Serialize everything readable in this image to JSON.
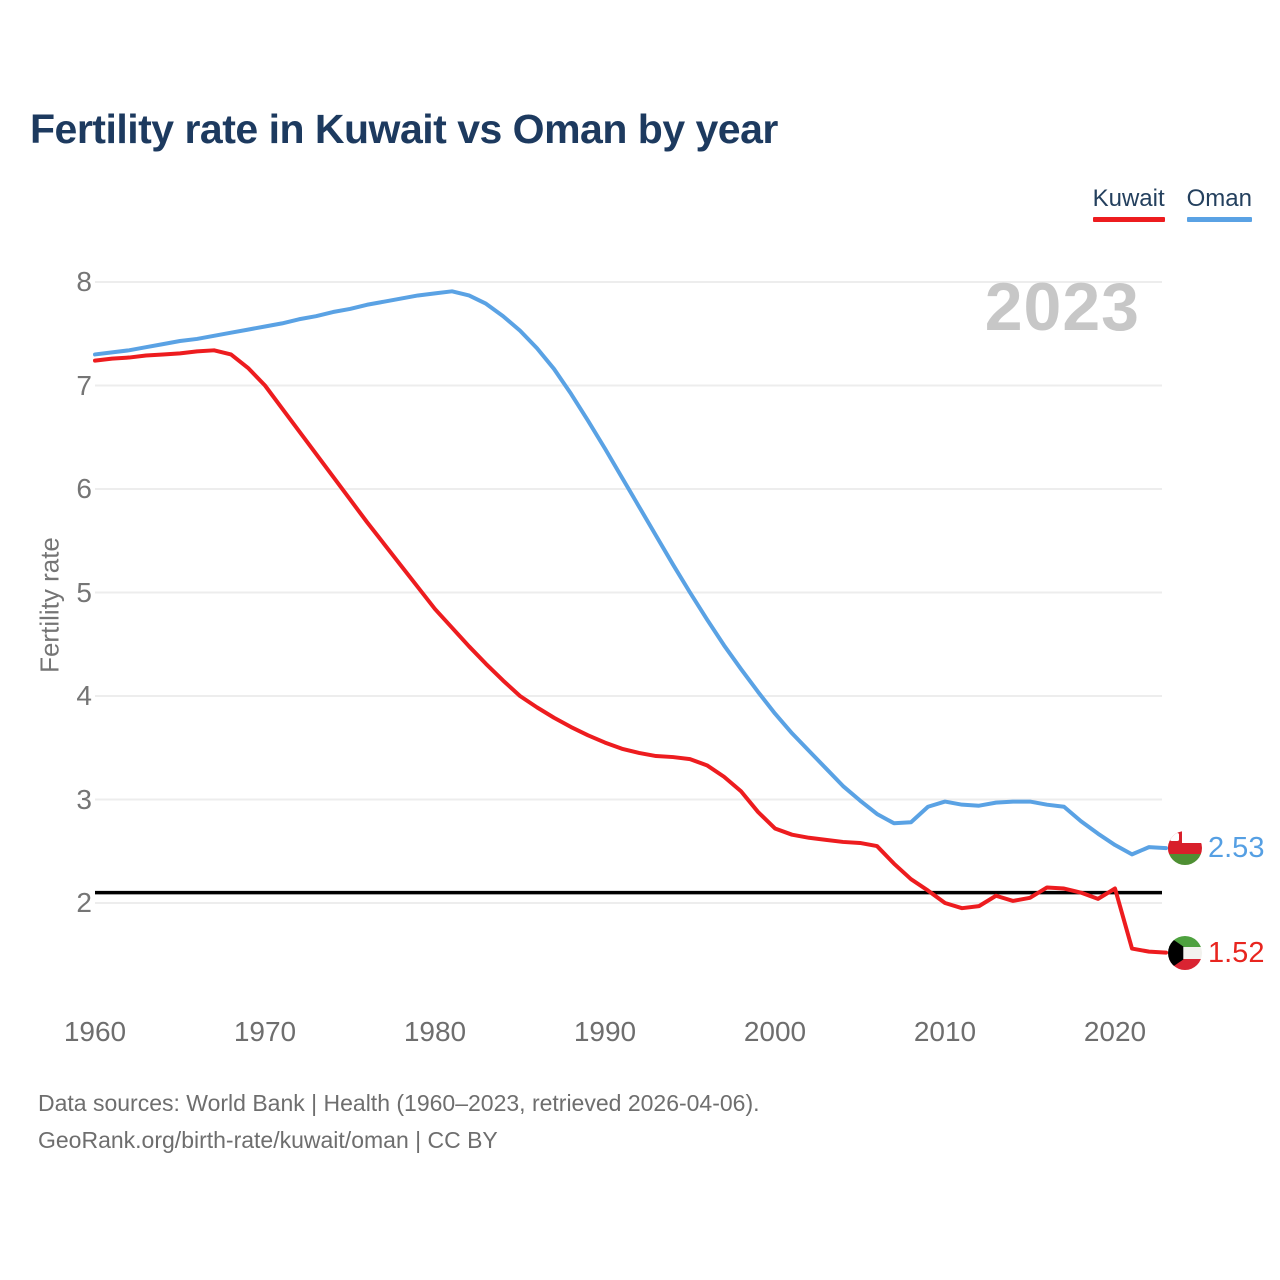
{
  "title": "Fertility rate in Kuwait vs Oman by year",
  "watermark": "2023",
  "legend": [
    {
      "label": "Kuwait",
      "color": "#ed1c1f"
    },
    {
      "label": "Oman",
      "color": "#5aa2e4"
    }
  ],
  "axes": {
    "y_label": "Fertility rate",
    "y_ticks": [
      8,
      7,
      6,
      5,
      4,
      3,
      2
    ],
    "x_ticks": [
      1960,
      1970,
      1980,
      1990,
      2000,
      2010,
      2020
    ]
  },
  "end_labels": {
    "oman": "2.53",
    "kuwait": "1.52"
  },
  "footer": {
    "line1": "Data sources: World Bank | Health (1960–2023, retrieved 2026-04-06).",
    "line2": "GeoRank.org/birth-rate/kuwait/oman | CC BY"
  },
  "colors": {
    "kuwait": "#ed1c1f",
    "oman": "#5aa2e4",
    "gridline": "#ededed",
    "replacement_line": "#000000",
    "title": "#1d3a5f",
    "axis_text": "#757575",
    "watermark": "#c7c7c7"
  },
  "chart_data": {
    "type": "line",
    "title": "Fertility rate in Kuwait vs Oman by year",
    "xlabel": "",
    "ylabel": "Fertility rate",
    "ylim": [
      1.3,
      8.3
    ],
    "xlim": [
      1960,
      2023
    ],
    "grid": "horizontal",
    "legend_position": "top-right",
    "annotations": {
      "replacement_level": 2.1,
      "current_year_watermark": "2023"
    },
    "x": [
      1960,
      1961,
      1962,
      1963,
      1964,
      1965,
      1966,
      1967,
      1968,
      1969,
      1970,
      1971,
      1972,
      1973,
      1974,
      1975,
      1976,
      1977,
      1978,
      1979,
      1980,
      1981,
      1982,
      1983,
      1984,
      1985,
      1986,
      1987,
      1988,
      1989,
      1990,
      1991,
      1992,
      1993,
      1994,
      1995,
      1996,
      1997,
      1998,
      1999,
      2000,
      2001,
      2002,
      2003,
      2004,
      2005,
      2006,
      2007,
      2008,
      2009,
      2010,
      2011,
      2012,
      2013,
      2014,
      2015,
      2016,
      2017,
      2018,
      2019,
      2020,
      2021,
      2022,
      2023
    ],
    "series": [
      {
        "name": "Kuwait",
        "color": "#ed1c1f",
        "end_value": 1.52,
        "values": [
          7.24,
          7.26,
          7.27,
          7.29,
          7.3,
          7.31,
          7.33,
          7.34,
          7.3,
          7.17,
          7.0,
          6.78,
          6.56,
          6.34,
          6.12,
          5.9,
          5.68,
          5.47,
          5.26,
          5.05,
          4.84,
          4.66,
          4.48,
          4.31,
          4.15,
          4.0,
          3.89,
          3.79,
          3.7,
          3.62,
          3.55,
          3.49,
          3.45,
          3.42,
          3.41,
          3.39,
          3.33,
          3.22,
          3.08,
          2.88,
          2.72,
          2.66,
          2.63,
          2.61,
          2.59,
          2.58,
          2.55,
          2.38,
          2.23,
          2.12,
          2.0,
          1.95,
          1.97,
          2.07,
          2.02,
          2.05,
          2.15,
          2.14,
          2.1,
          2.04,
          2.14,
          1.56,
          1.53,
          1.52
        ]
      },
      {
        "name": "Oman",
        "color": "#5aa2e4",
        "end_value": 2.53,
        "values": [
          7.3,
          7.32,
          7.34,
          7.37,
          7.4,
          7.43,
          7.45,
          7.48,
          7.51,
          7.54,
          7.57,
          7.6,
          7.64,
          7.67,
          7.71,
          7.74,
          7.78,
          7.81,
          7.84,
          7.87,
          7.89,
          7.91,
          7.87,
          7.79,
          7.67,
          7.53,
          7.36,
          7.16,
          6.92,
          6.66,
          6.39,
          6.11,
          5.83,
          5.55,
          5.27,
          5.0,
          4.74,
          4.49,
          4.26,
          4.04,
          3.83,
          3.64,
          3.47,
          3.3,
          3.13,
          2.99,
          2.86,
          2.77,
          2.78,
          2.93,
          2.98,
          2.95,
          2.94,
          2.97,
          2.98,
          2.98,
          2.95,
          2.93,
          2.79,
          2.67,
          2.56,
          2.47,
          2.54,
          2.53
        ]
      }
    ]
  }
}
